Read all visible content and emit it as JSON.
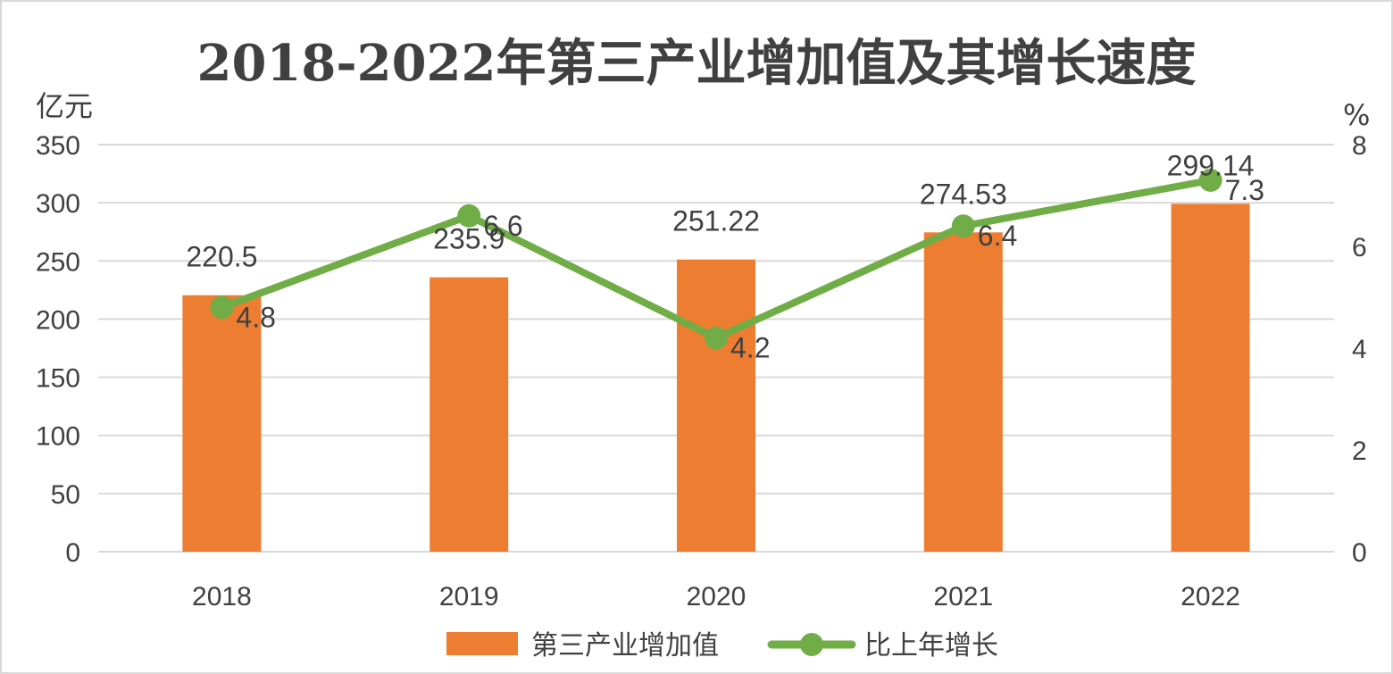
{
  "chart_data": {
    "type": "bar+line",
    "title": "2018-2022年第三产业增加值及其增长速度",
    "y_left_unit": "亿元",
    "y_right_unit": "%",
    "categories": [
      "2018",
      "2019",
      "2020",
      "2021",
      "2022"
    ],
    "series": [
      {
        "name": "第三产业增加值",
        "type": "bar",
        "axis": "left",
        "color": "#ed7d31",
        "values": [
          220.5,
          235.9,
          251.22,
          274.53,
          299.14
        ],
        "labels": [
          "220.5",
          "235.9",
          "251.22",
          "274.53",
          "299.14"
        ]
      },
      {
        "name": "比上年增长",
        "type": "line",
        "axis": "right",
        "color": "#70ad47",
        "values": [
          4.8,
          6.6,
          4.2,
          6.4,
          7.3
        ],
        "labels": [
          "4.8",
          "6.6",
          "4.2",
          "6.4",
          "7.3"
        ]
      }
    ],
    "y_left": {
      "min": 0,
      "max": 350,
      "ticks": [
        "0",
        "50",
        "100",
        "150",
        "200",
        "250",
        "300",
        "350"
      ]
    },
    "y_right": {
      "min": 0,
      "max": 8,
      "ticks": [
        "0",
        "2",
        "4",
        "6",
        "8"
      ]
    },
    "grid": true,
    "legend_position": "bottom"
  }
}
